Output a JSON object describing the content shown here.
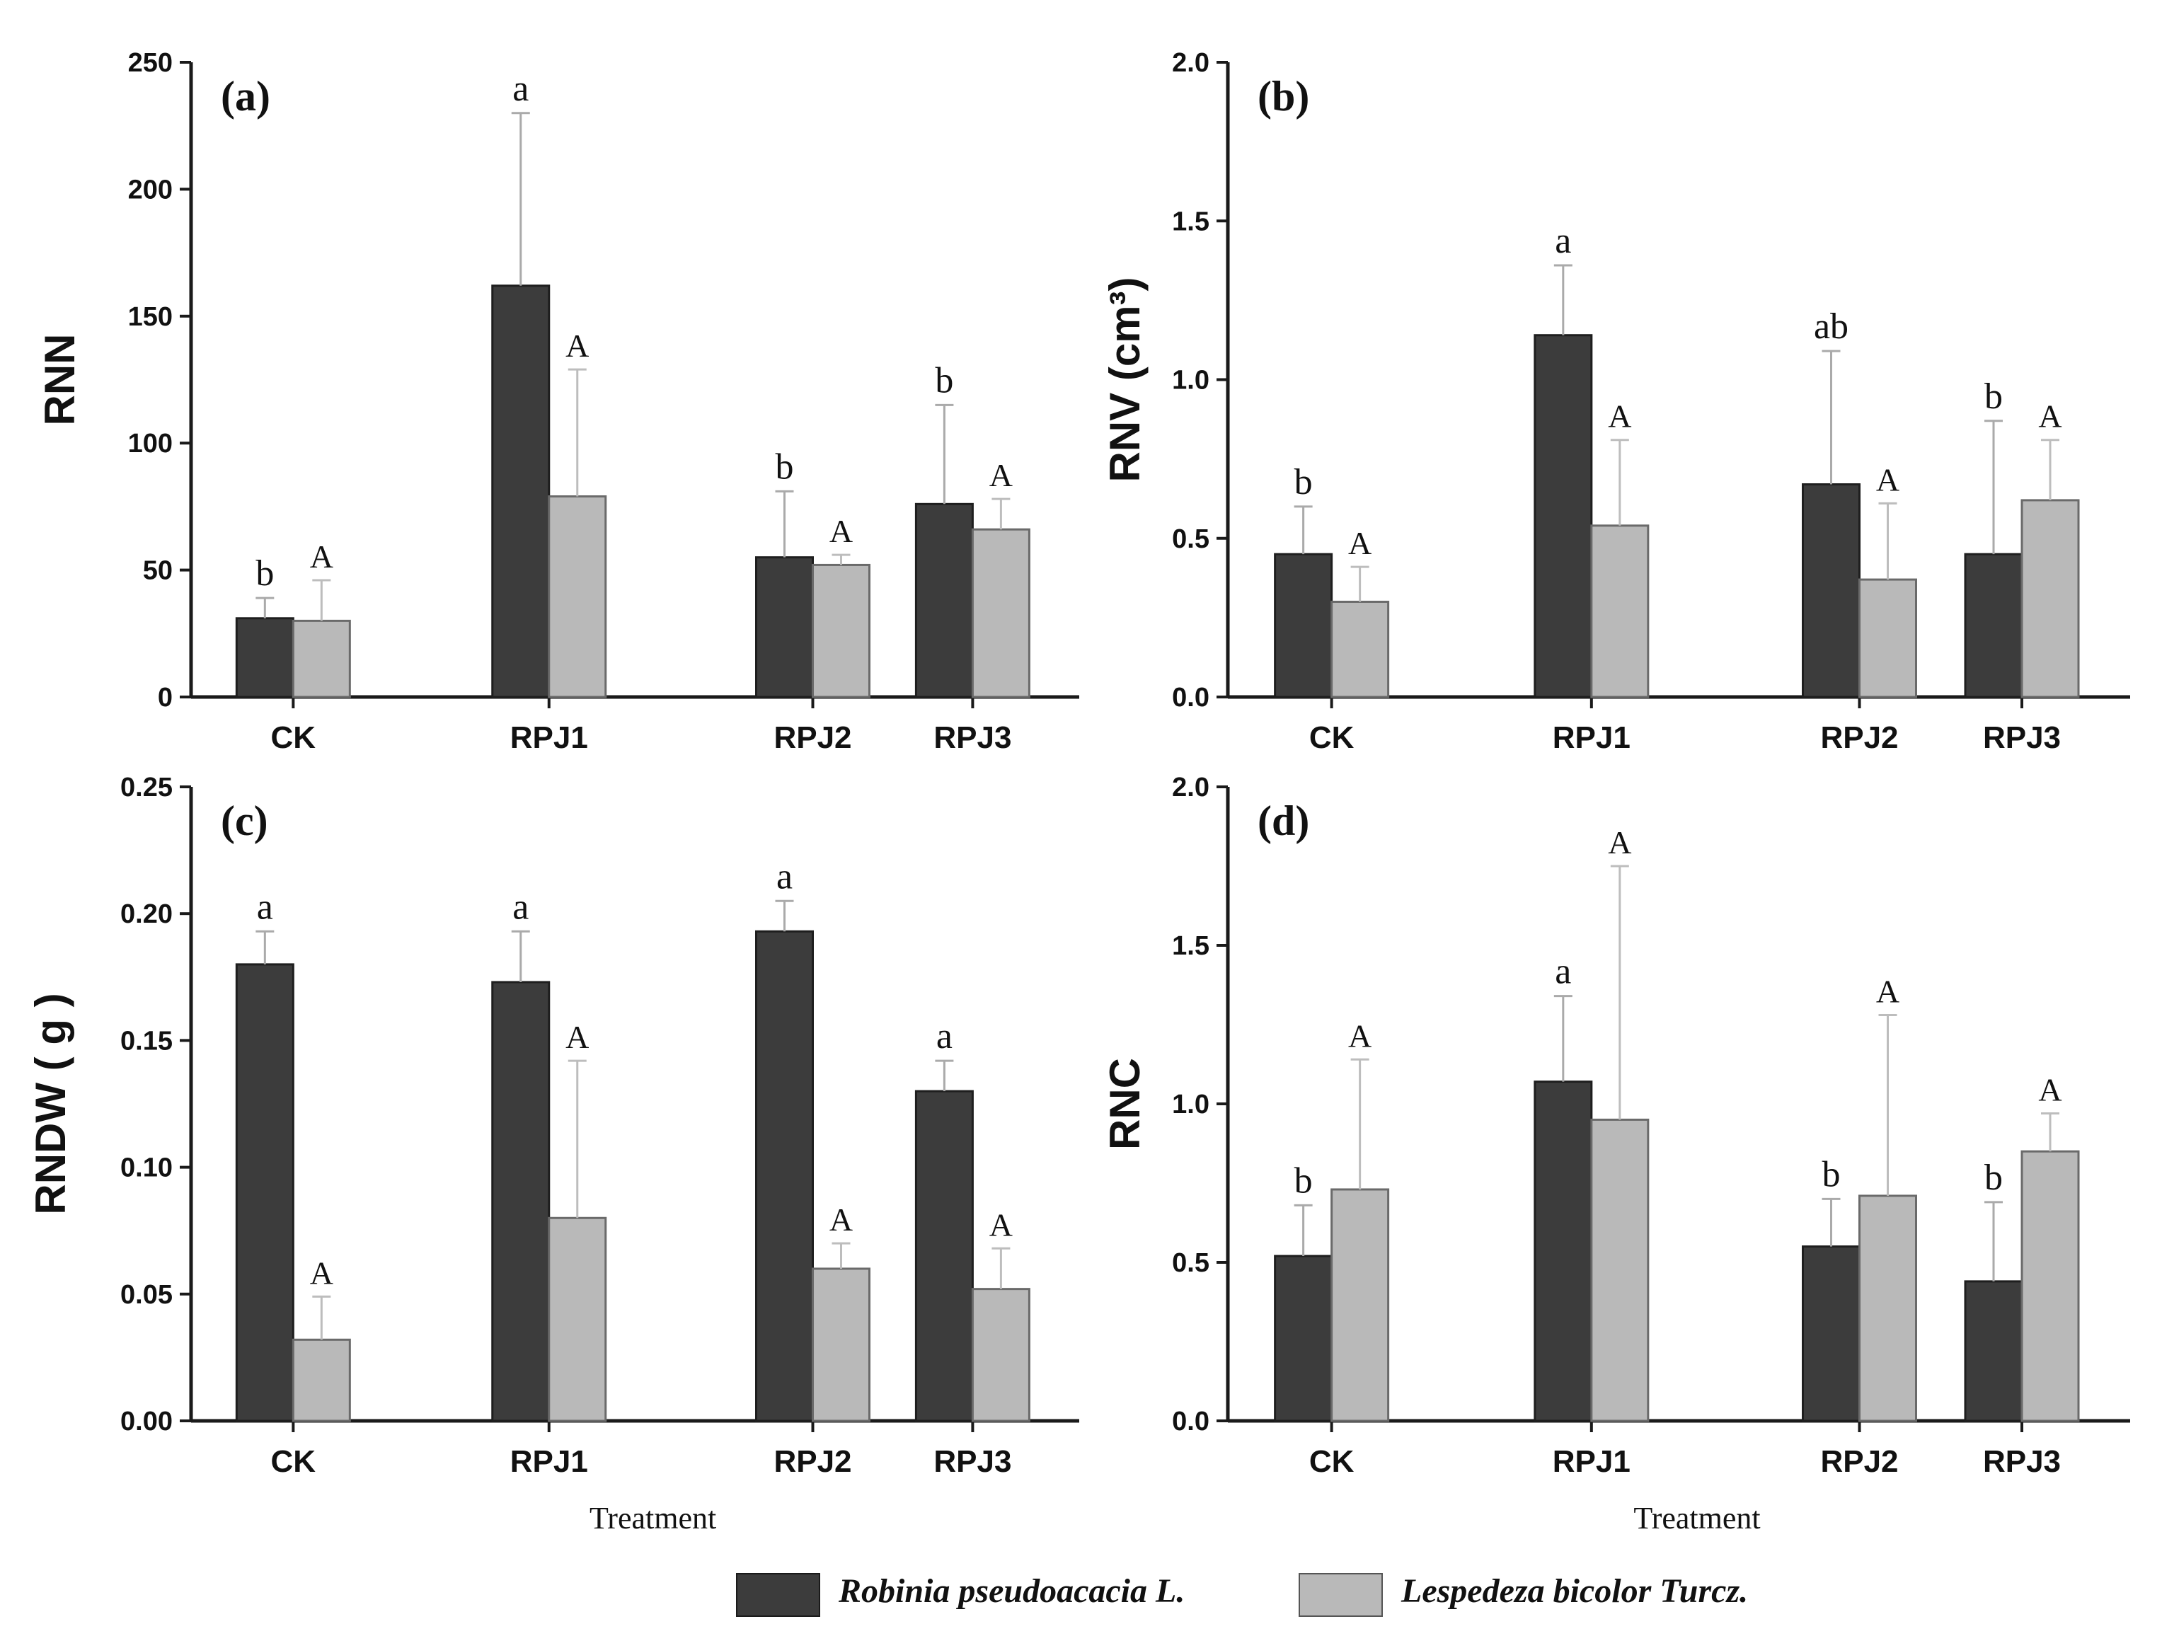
{
  "colors": {
    "robinia": "#3c3c3c",
    "lespedeza": "#b9b9b9",
    "error_robinia": "#aaaaaa",
    "error_lespedeza": "#bdbdbd",
    "axis": "#1a1a1a"
  },
  "legend": {
    "series": [
      {
        "name": "Robinia pseudoacacia L."
      },
      {
        "name": "Lespedeza bicolor Turcz."
      }
    ]
  },
  "chart_data": [
    {
      "type": "bar",
      "panel_label": "(a)",
      "ylabel": "RNN",
      "xlabel": "",
      "ylim": [
        0,
        250
      ],
      "yticks": [
        "0",
        "50",
        "100",
        "150",
        "200",
        "250"
      ],
      "categories": [
        "CK",
        "RPJ1",
        "RPJ2",
        "RPJ3"
      ],
      "series": [
        {
          "name": "Robinia pseudoacacia L.",
          "values": [
            31,
            162,
            55,
            76
          ],
          "errors": [
            8,
            68,
            26,
            39
          ],
          "letters": [
            "b",
            "a",
            "b",
            "b"
          ]
        },
        {
          "name": "Lespedeza bicolor Turcz.",
          "values": [
            30,
            79,
            52,
            66
          ],
          "errors": [
            16,
            50,
            4,
            12
          ],
          "letters": [
            "A",
            "A",
            "A",
            "A"
          ]
        }
      ]
    },
    {
      "type": "bar",
      "panel_label": "(b)",
      "ylabel": "RNV (cm³)",
      "xlabel": "",
      "ylim": [
        0,
        2.0
      ],
      "yticks": [
        "0.0",
        "0.5",
        "1.0",
        "1.5",
        "2.0"
      ],
      "categories": [
        "CK",
        "RPJ1",
        "RPJ2",
        "RPJ3"
      ],
      "series": [
        {
          "name": "Robinia pseudoacacia L.",
          "values": [
            0.45,
            1.14,
            0.67,
            0.45
          ],
          "errors": [
            0.15,
            0.22,
            0.42,
            0.42
          ],
          "letters": [
            "b",
            "a",
            "ab",
            "b"
          ]
        },
        {
          "name": "Lespedeza bicolor Turcz.",
          "values": [
            0.3,
            0.54,
            0.37,
            0.62
          ],
          "errors": [
            0.11,
            0.27,
            0.24,
            0.19
          ],
          "letters": [
            "A",
            "A",
            "A",
            "A"
          ]
        }
      ]
    },
    {
      "type": "bar",
      "panel_label": "(c)",
      "ylabel": "RNDW ( g )",
      "xlabel": "Treatment",
      "ylim": [
        0,
        0.25
      ],
      "yticks": [
        "0.00",
        "0.05",
        "0.10",
        "0.15",
        "0.20",
        "0.25"
      ],
      "categories": [
        "CK",
        "RPJ1",
        "RPJ2",
        "RPJ3"
      ],
      "series": [
        {
          "name": "Robinia pseudoacacia L.",
          "values": [
            0.18,
            0.173,
            0.193,
            0.13
          ],
          "errors": [
            0.013,
            0.02,
            0.012,
            0.012
          ],
          "letters": [
            "a",
            "a",
            "a",
            "a"
          ]
        },
        {
          "name": "Lespedeza bicolor Turcz.",
          "values": [
            0.032,
            0.08,
            0.06,
            0.052
          ],
          "errors": [
            0.017,
            0.062,
            0.01,
            0.016
          ],
          "letters": [
            "A",
            "A",
            "A",
            "A"
          ]
        }
      ]
    },
    {
      "type": "bar",
      "panel_label": "(d)",
      "ylabel": "RNC",
      "xlabel": "Treatment",
      "ylim": [
        0,
        2.0
      ],
      "yticks": [
        "0.0",
        "0.5",
        "1.0",
        "1.5",
        "2.0"
      ],
      "categories": [
        "CK",
        "RPJ1",
        "RPJ2",
        "RPJ3"
      ],
      "series": [
        {
          "name": "Robinia pseudoacacia L.",
          "values": [
            0.52,
            1.07,
            0.55,
            0.44
          ],
          "errors": [
            0.16,
            0.27,
            0.15,
            0.25
          ],
          "letters": [
            "b",
            "a",
            "b",
            "b"
          ]
        },
        {
          "name": "Lespedeza bicolor Turcz.",
          "values": [
            0.73,
            0.95,
            0.71,
            0.85
          ],
          "errors": [
            0.41,
            0.8,
            0.57,
            0.12
          ],
          "letters": [
            "A",
            "A",
            "A",
            "A"
          ]
        }
      ]
    }
  ]
}
